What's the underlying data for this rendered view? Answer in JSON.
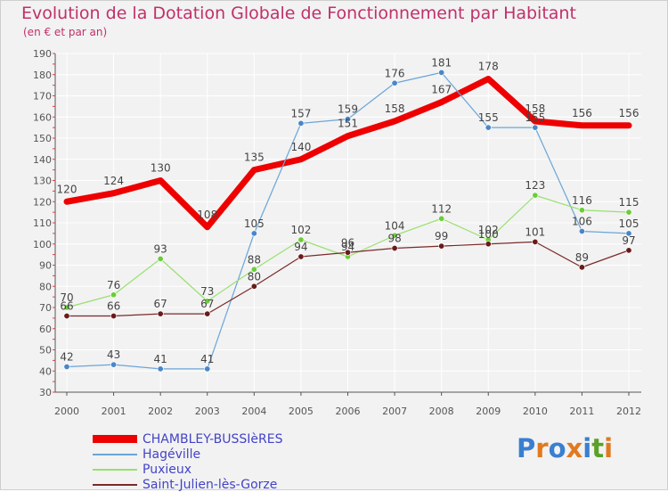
{
  "title": "Evolution de la Dotation Globale de Fonctionnement par Habitant",
  "subtitle": "(en € et par an)",
  "chart_data": {
    "type": "line",
    "title": "Evolution de la Dotation Globale de Fonctionnement par Habitant",
    "ylabel": "(en € et par an)",
    "xlabel": "",
    "x": [
      "2000",
      "2001",
      "2002",
      "2003",
      "2004",
      "2005",
      "2006",
      "2007",
      "2008",
      "2009",
      "2010",
      "2011",
      "2012"
    ],
    "ylim": [
      30,
      190
    ],
    "yticks": [
      30,
      40,
      50,
      60,
      70,
      80,
      90,
      100,
      110,
      120,
      130,
      140,
      150,
      160,
      170,
      180,
      190
    ],
    "grid": true,
    "series": [
      {
        "name": "CHAMBLEY-BUSSIèRES",
        "color": "#ee0000",
        "width": 7,
        "markers": false,
        "values": [
          120,
          124,
          130,
          108,
          135,
          140,
          151,
          158,
          167,
          178,
          158,
          156,
          156
        ]
      },
      {
        "name": "Hagéville",
        "color": "#6aa5d8",
        "marker_color": "#4a86c8",
        "width": 1.2,
        "markers": true,
        "values": [
          42,
          43,
          41,
          41,
          105,
          157,
          159,
          176,
          181,
          155,
          155,
          106,
          105
        ]
      },
      {
        "name": "Puxieux",
        "color": "#99e070",
        "marker_color": "#6ccd3a",
        "width": 1.2,
        "markers": true,
        "values": [
          70,
          76,
          93,
          73,
          88,
          102,
          94,
          104,
          112,
          102,
          123,
          116,
          115
        ]
      },
      {
        "name": "Saint-Julien-lès-Gorze",
        "color": "#7a2a2a",
        "marker_color": "#6a1a1a",
        "width": 1.2,
        "markers": true,
        "values": [
          66,
          66,
          67,
          67,
          80,
          94,
          96,
          98,
          99,
          100,
          101,
          89,
          97
        ]
      }
    ],
    "labels": [
      {
        "series": 0,
        "text": [
          "120",
          "124",
          "130",
          "108",
          "135",
          "140",
          "151",
          "158",
          "167",
          "178",
          "158",
          "156",
          "156"
        ]
      },
      {
        "series": 1,
        "text": [
          "42",
          "43",
          "41",
          "41",
          "105",
          "157",
          "159",
          "176",
          "181",
          "155",
          "155",
          "106",
          "105"
        ]
      },
      {
        "series": 2,
        "text": [
          "70",
          "76",
          "93",
          "73",
          "88",
          "102",
          "94",
          "104",
          "112",
          "102",
          "123",
          "116",
          "115"
        ]
      },
      {
        "series": 3,
        "text": [
          "66",
          "66",
          "67",
          "67",
          "80",
          "94",
          "96",
          "98",
          "99",
          "100",
          "101",
          "89",
          "97"
        ]
      }
    ]
  },
  "legend": {
    "items": [
      {
        "label": "CHAMBLEY-BUSSIèRES",
        "color": "#ee0000"
      },
      {
        "label": "Hagéville",
        "color": "#6aa5d8"
      },
      {
        "label": "Puxieux",
        "color": "#99e070"
      },
      {
        "label": "Saint-Julien-lès-Gorze",
        "color": "#7a2a2a"
      }
    ]
  },
  "logo": {
    "text": "Proxiti",
    "colors": [
      "#3a7fd0",
      "#e07a20",
      "#3a7fd0",
      "#e07a20",
      "#3a7fd0",
      "#5aa02a",
      "#e07a20"
    ]
  }
}
